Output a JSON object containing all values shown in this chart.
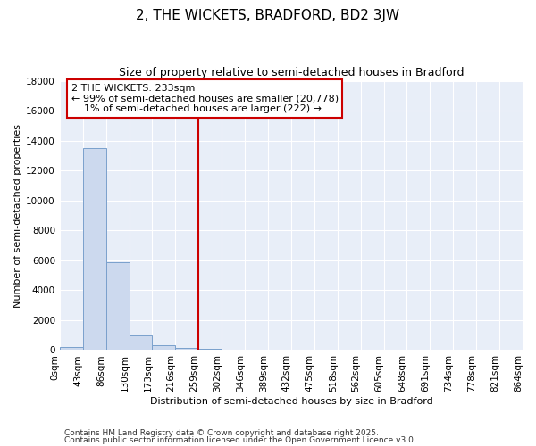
{
  "title": "2, THE WICKETS, BRADFORD, BD2 3JW",
  "subtitle": "Size of property relative to semi-detached houses in Bradford",
  "xlabel": "Distribution of semi-detached houses by size in Bradford",
  "ylabel": "Number of semi-detached properties",
  "bar_values": [
    200,
    13500,
    5900,
    1000,
    300,
    150,
    100,
    0,
    0,
    0,
    0,
    0,
    0,
    0,
    0,
    0,
    0,
    0,
    0,
    0
  ],
  "bar_labels": [
    "0sqm",
    "43sqm",
    "86sqm",
    "130sqm",
    "173sqm",
    "216sqm",
    "259sqm",
    "302sqm",
    "346sqm",
    "389sqm",
    "432sqm",
    "475sqm",
    "518sqm",
    "562sqm",
    "605sqm",
    "648sqm",
    "691sqm",
    "734sqm",
    "778sqm",
    "821sqm",
    "864sqm"
  ],
  "bar_color": "#ccd9ee",
  "bar_edge_color": "#7aa0cc",
  "red_line_x": 6,
  "annot_line1": "2 THE WICKETS: 233sqm",
  "annot_line2": "← 99% of semi-detached houses are smaller (20,778)",
  "annot_line3": "    1% of semi-detached houses are larger (222) →",
  "annotation_box_color": "#ffffff",
  "annotation_box_edge": "#cc0000",
  "ylim": [
    0,
    18000
  ],
  "yticks": [
    0,
    2000,
    4000,
    6000,
    8000,
    10000,
    12000,
    14000,
    16000,
    18000
  ],
  "footer_line1": "Contains HM Land Registry data © Crown copyright and database right 2025.",
  "footer_line2": "Contains public sector information licensed under the Open Government Licence v3.0.",
  "fig_bg_color": "#ffffff",
  "plot_bg_color": "#e8eef8",
  "grid_color": "#ffffff",
  "title_fontsize": 11,
  "subtitle_fontsize": 9,
  "axis_label_fontsize": 8,
  "tick_fontsize": 7.5,
  "annotation_fontsize": 8,
  "footer_fontsize": 6.5
}
